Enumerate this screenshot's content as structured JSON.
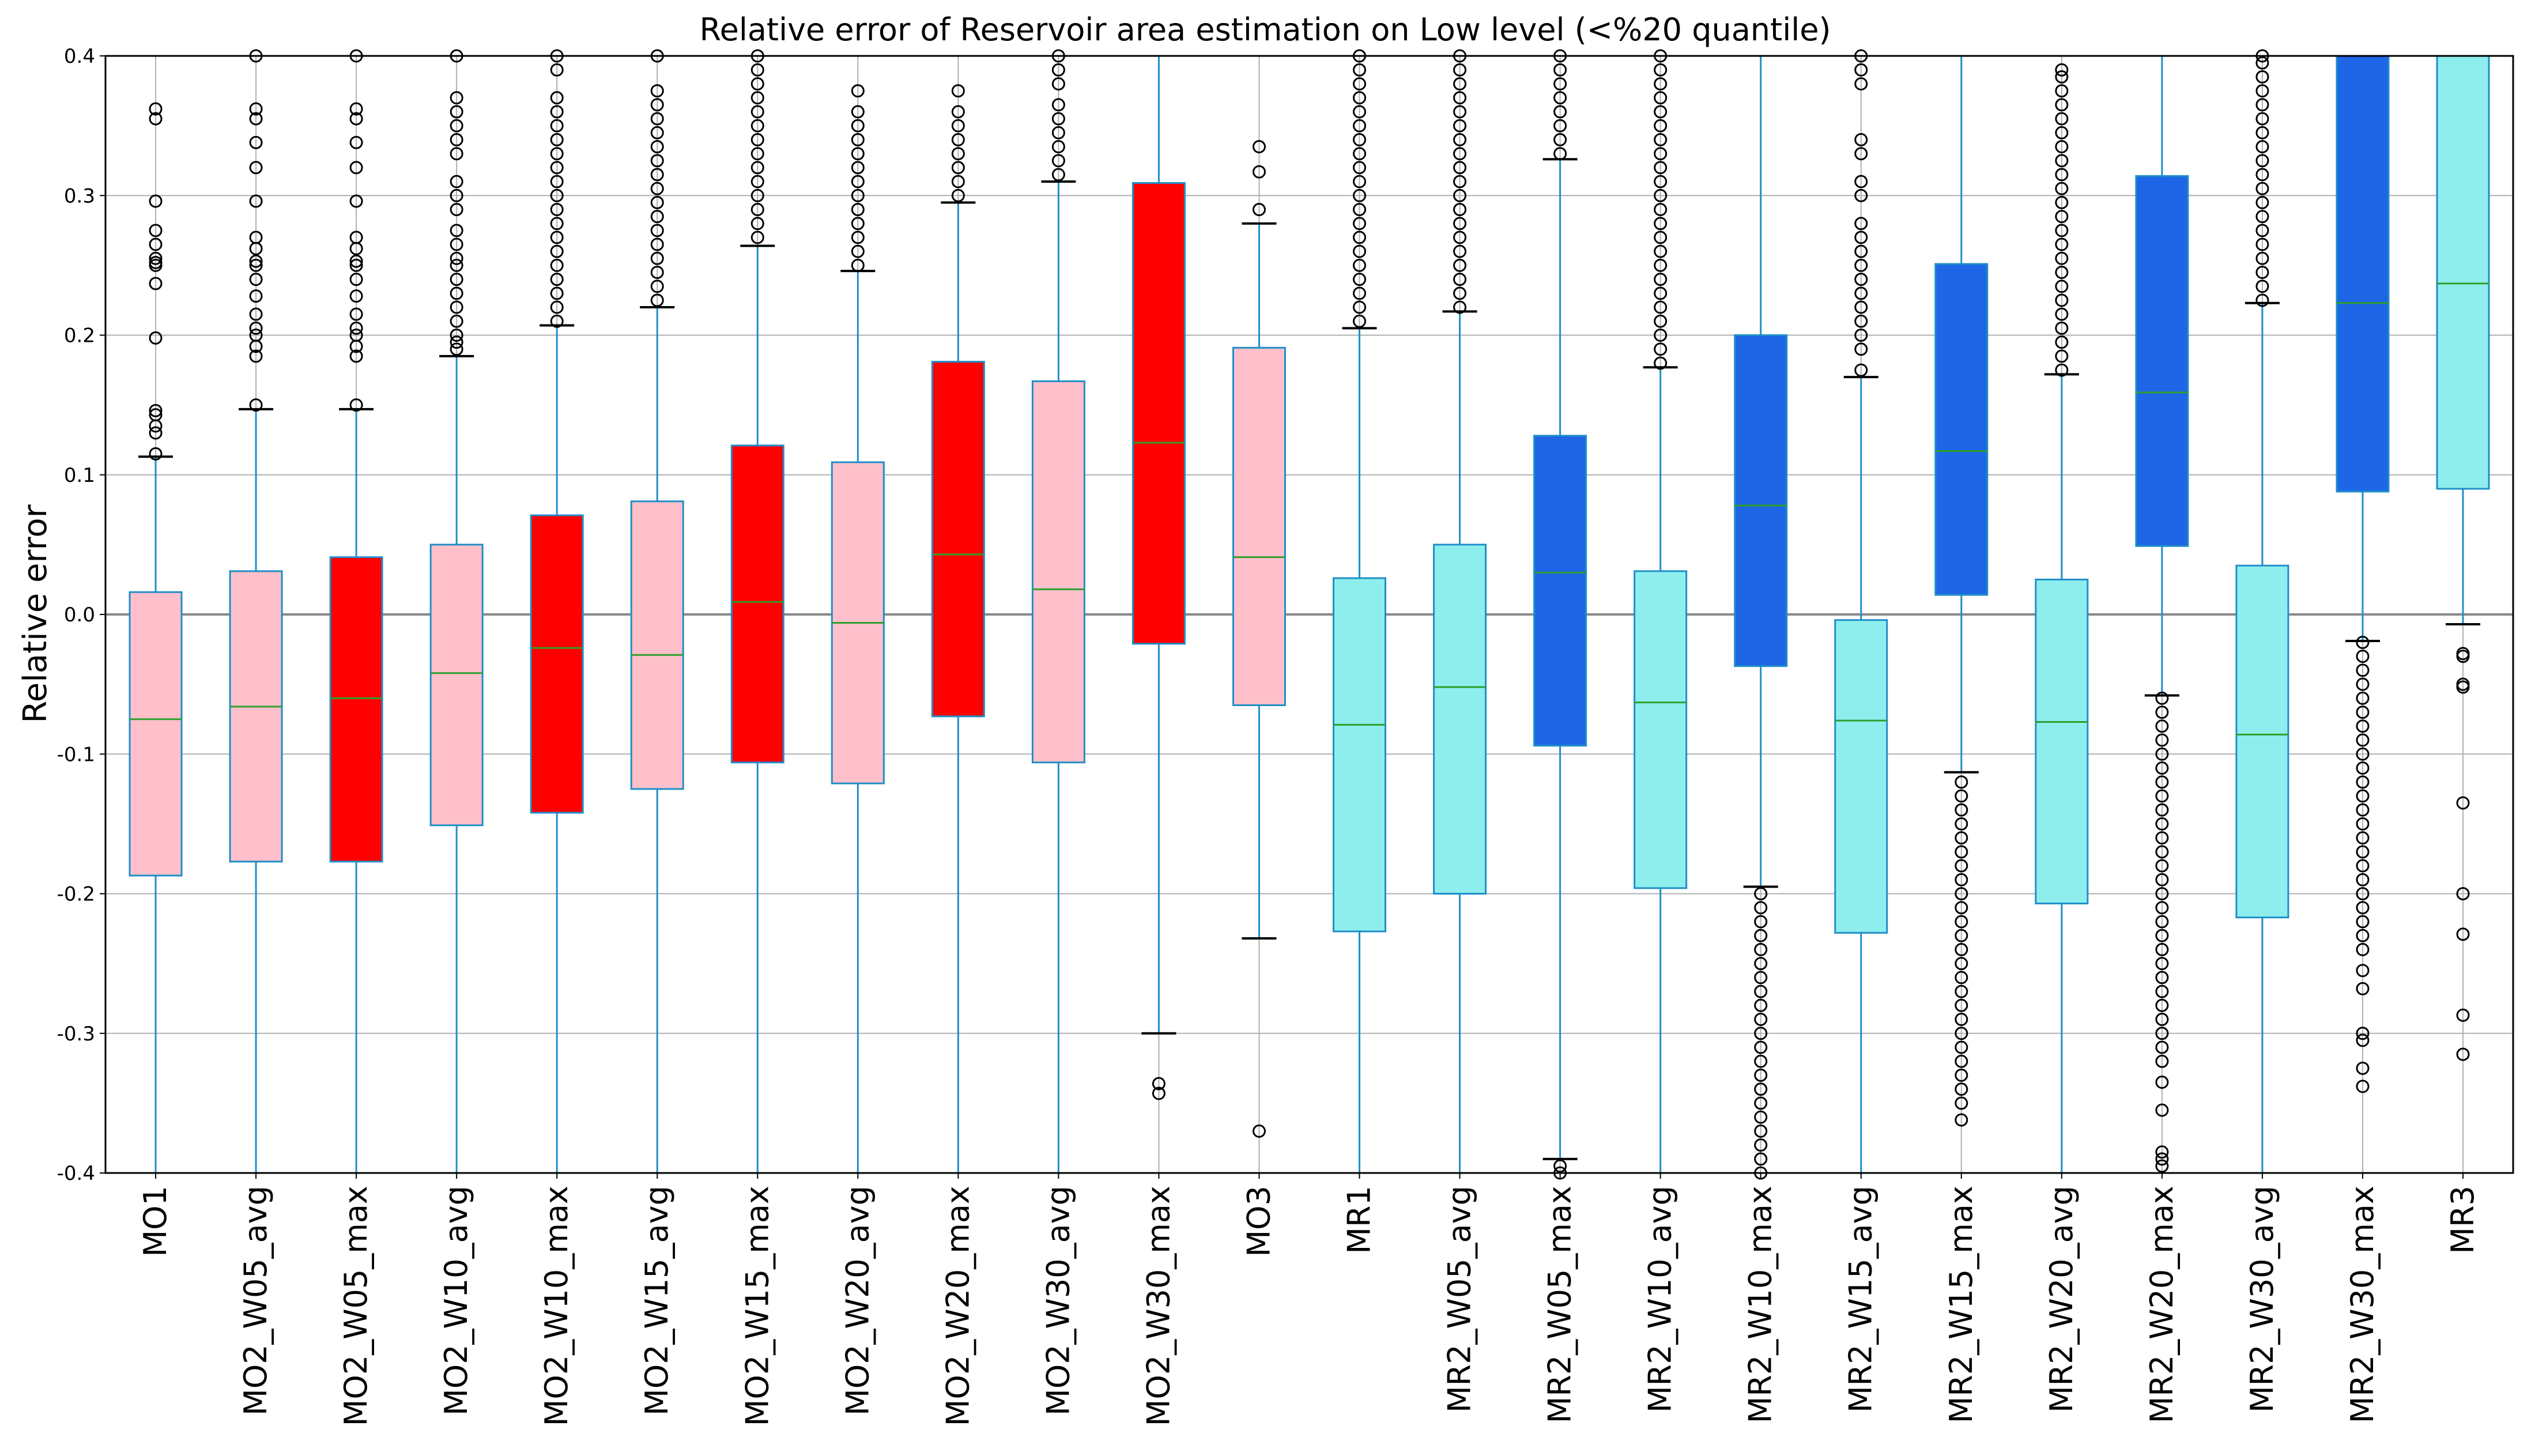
{
  "chart_data": {
    "type": "box",
    "title": "Relative error of Reservoir area estimation on Low level (<%20 quantile)",
    "xlabel": "",
    "ylabel": "Relative error",
    "ylim": [
      -0.4,
      0.4
    ],
    "yticks": [
      "-0.4",
      "-0.3",
      "-0.2",
      "-0.1",
      "0.0",
      "0.1",
      "0.2",
      "0.3",
      "0.4"
    ],
    "ytick_values": [
      -0.4,
      -0.3,
      -0.2,
      -0.1,
      0.0,
      0.1,
      0.2,
      0.3,
      0.4
    ],
    "grid": true,
    "colors": {
      "pink": "#ffc0cb",
      "red": "#ff0000",
      "cyan": "#8eeeee",
      "blue": "#1e66e6",
      "edge": "#1f8fc8",
      "median": "#2ca02c",
      "zero_line": "#888888",
      "grid": "#b0b0b0"
    },
    "boxes": [
      {
        "label": "MO1",
        "color": "pink",
        "q1": -0.187,
        "median": -0.075,
        "q3": 0.016,
        "whisker_low": -0.4,
        "whisker_high": 0.113,
        "outliers": [
          0.115,
          0.13,
          0.135,
          0.143,
          0.146,
          0.198,
          0.237,
          0.25,
          0.252,
          0.255,
          0.265,
          0.275,
          0.296,
          0.355,
          0.362
        ]
      },
      {
        "label": "MO2_W05_avg",
        "color": "pink",
        "q1": -0.177,
        "median": -0.066,
        "q3": 0.031,
        "whisker_low": -0.4,
        "whisker_high": 0.147,
        "outliers": [
          0.15,
          0.185,
          0.192,
          0.2,
          0.205,
          0.215,
          0.228,
          0.24,
          0.25,
          0.253,
          0.262,
          0.27,
          0.296,
          0.32,
          0.338,
          0.355,
          0.362,
          0.4
        ]
      },
      {
        "label": "MO2_W05_max",
        "color": "red",
        "q1": -0.177,
        "median": -0.06,
        "q3": 0.041,
        "whisker_low": -0.4,
        "whisker_high": 0.147,
        "outliers": [
          0.15,
          0.185,
          0.192,
          0.2,
          0.205,
          0.215,
          0.228,
          0.24,
          0.25,
          0.253,
          0.262,
          0.27,
          0.296,
          0.32,
          0.338,
          0.355,
          0.362,
          0.4
        ]
      },
      {
        "label": "MO2_W10_avg",
        "color": "pink",
        "q1": -0.151,
        "median": -0.042,
        "q3": 0.05,
        "whisker_low": -0.4,
        "whisker_high": 0.185,
        "outliers": [
          0.19,
          0.195,
          0.2,
          0.21,
          0.22,
          0.23,
          0.24,
          0.25,
          0.255,
          0.265,
          0.275,
          0.29,
          0.3,
          0.31,
          0.33,
          0.34,
          0.35,
          0.36,
          0.37,
          0.4
        ]
      },
      {
        "label": "MO2_W10_max",
        "color": "red",
        "q1": -0.142,
        "median": -0.024,
        "q3": 0.071,
        "whisker_low": -0.4,
        "whisker_high": 0.207,
        "outliers": [
          0.21,
          0.22,
          0.23,
          0.24,
          0.25,
          0.26,
          0.27,
          0.28,
          0.29,
          0.3,
          0.31,
          0.32,
          0.33,
          0.34,
          0.35,
          0.36,
          0.37,
          0.39,
          0.4
        ]
      },
      {
        "label": "MO2_W15_avg",
        "color": "pink",
        "q1": -0.125,
        "median": -0.029,
        "q3": 0.081,
        "whisker_low": -0.4,
        "whisker_high": 0.22,
        "outliers": [
          0.225,
          0.235,
          0.245,
          0.255,
          0.265,
          0.275,
          0.285,
          0.295,
          0.305,
          0.315,
          0.325,
          0.335,
          0.345,
          0.355,
          0.365,
          0.375,
          0.4
        ]
      },
      {
        "label": "MO2_W15_max",
        "color": "red",
        "q1": -0.106,
        "median": 0.009,
        "q3": 0.121,
        "whisker_low": -0.4,
        "whisker_high": 0.264,
        "outliers": [
          0.27,
          0.28,
          0.29,
          0.3,
          0.31,
          0.32,
          0.33,
          0.34,
          0.35,
          0.36,
          0.37,
          0.38,
          0.39,
          0.4
        ]
      },
      {
        "label": "MO2_W20_avg",
        "color": "pink",
        "q1": -0.121,
        "median": -0.006,
        "q3": 0.109,
        "whisker_low": -0.4,
        "whisker_high": 0.246,
        "outliers": [
          0.25,
          0.26,
          0.27,
          0.28,
          0.29,
          0.3,
          0.31,
          0.32,
          0.33,
          0.34,
          0.35,
          0.36,
          0.375
        ]
      },
      {
        "label": "MO2_W20_max",
        "color": "red",
        "q1": -0.073,
        "median": 0.043,
        "q3": 0.181,
        "whisker_low": -0.4,
        "whisker_high": 0.295,
        "outliers": [
          0.3,
          0.31,
          0.32,
          0.33,
          0.34,
          0.35,
          0.36,
          0.375
        ]
      },
      {
        "label": "MO2_W30_avg",
        "color": "pink",
        "q1": -0.106,
        "median": 0.018,
        "q3": 0.167,
        "whisker_low": -0.4,
        "whisker_high": 0.31,
        "outliers": [
          0.315,
          0.325,
          0.335,
          0.345,
          0.355,
          0.365,
          0.38,
          0.39,
          0.4
        ]
      },
      {
        "label": "MO2_W30_max",
        "color": "red",
        "q1": -0.021,
        "median": 0.123,
        "q3": 0.309,
        "whisker_low": -0.3,
        "whisker_high": 0.4,
        "outliers": [
          -0.336,
          -0.343
        ]
      },
      {
        "label": "MO3",
        "color": "pink",
        "q1": -0.065,
        "median": 0.041,
        "q3": 0.191,
        "whisker_low": -0.232,
        "whisker_high": 0.28,
        "outliers": [
          0.29,
          0.317,
          0.335,
          -0.37
        ]
      },
      {
        "label": "MR1",
        "color": "cyan",
        "q1": -0.227,
        "median": -0.079,
        "q3": 0.026,
        "whisker_low": -0.4,
        "whisker_high": 0.205,
        "outliers": [
          0.21,
          0.22,
          0.23,
          0.24,
          0.25,
          0.26,
          0.27,
          0.28,
          0.29,
          0.3,
          0.31,
          0.32,
          0.33,
          0.34,
          0.35,
          0.36,
          0.37,
          0.38,
          0.39,
          0.4
        ]
      },
      {
        "label": "MR2_W05_avg",
        "color": "cyan",
        "q1": -0.2,
        "median": -0.052,
        "q3": 0.05,
        "whisker_low": -0.4,
        "whisker_high": 0.217,
        "outliers": [
          0.22,
          0.23,
          0.24,
          0.25,
          0.26,
          0.27,
          0.28,
          0.29,
          0.3,
          0.31,
          0.32,
          0.33,
          0.34,
          0.35,
          0.36,
          0.37,
          0.38,
          0.39,
          0.4
        ]
      },
      {
        "label": "MR2_W05_max",
        "color": "blue",
        "q1": -0.094,
        "median": 0.03,
        "q3": 0.128,
        "whisker_low": -0.39,
        "whisker_high": 0.326,
        "outliers": [
          0.33,
          0.34,
          0.35,
          0.36,
          0.37,
          0.38,
          0.39,
          0.4,
          -0.395,
          -0.4
        ]
      },
      {
        "label": "MR2_W10_avg",
        "color": "cyan",
        "q1": -0.196,
        "median": -0.063,
        "q3": 0.031,
        "whisker_low": -0.4,
        "whisker_high": 0.177,
        "outliers": [
          0.18,
          0.19,
          0.2,
          0.21,
          0.22,
          0.23,
          0.24,
          0.25,
          0.26,
          0.27,
          0.28,
          0.29,
          0.3,
          0.31,
          0.32,
          0.33,
          0.34,
          0.35,
          0.36,
          0.37,
          0.38,
          0.39,
          0.4
        ]
      },
      {
        "label": "MR2_W10_max",
        "color": "blue",
        "q1": -0.037,
        "median": 0.078,
        "q3": 0.2,
        "whisker_low": -0.195,
        "whisker_high": 0.4,
        "outliers": [
          -0.2,
          -0.21,
          -0.22,
          -0.23,
          -0.24,
          -0.25,
          -0.26,
          -0.27,
          -0.28,
          -0.29,
          -0.3,
          -0.31,
          -0.32,
          -0.33,
          -0.34,
          -0.35,
          -0.36,
          -0.37,
          -0.38,
          -0.39,
          -0.4
        ]
      },
      {
        "label": "MR2_W15_avg",
        "color": "cyan",
        "q1": -0.228,
        "median": -0.076,
        "q3": -0.004,
        "whisker_low": -0.4,
        "whisker_high": 0.17,
        "outliers": [
          0.175,
          0.19,
          0.2,
          0.21,
          0.22,
          0.23,
          0.24,
          0.25,
          0.26,
          0.27,
          0.28,
          0.3,
          0.31,
          0.33,
          0.34,
          0.38,
          0.39,
          0.4
        ]
      },
      {
        "label": "MR2_W15_max",
        "color": "blue",
        "q1": 0.014,
        "median": 0.117,
        "q3": 0.251,
        "whisker_low": -0.113,
        "whisker_high": 0.4,
        "outliers": [
          -0.12,
          -0.13,
          -0.14,
          -0.15,
          -0.16,
          -0.17,
          -0.18,
          -0.19,
          -0.2,
          -0.21,
          -0.22,
          -0.23,
          -0.24,
          -0.25,
          -0.26,
          -0.27,
          -0.28,
          -0.29,
          -0.3,
          -0.31,
          -0.32,
          -0.33,
          -0.34,
          -0.35,
          -0.362
        ]
      },
      {
        "label": "MR2_W20_avg",
        "color": "cyan",
        "q1": -0.207,
        "median": -0.077,
        "q3": 0.025,
        "whisker_low": -0.4,
        "whisker_high": 0.172,
        "outliers": [
          0.175,
          0.185,
          0.195,
          0.205,
          0.215,
          0.225,
          0.235,
          0.245,
          0.255,
          0.265,
          0.275,
          0.285,
          0.295,
          0.305,
          0.315,
          0.325,
          0.335,
          0.345,
          0.355,
          0.365,
          0.375,
          0.385,
          0.39
        ]
      },
      {
        "label": "MR2_W20_max",
        "color": "blue",
        "q1": 0.049,
        "median": 0.159,
        "q3": 0.314,
        "whisker_low": -0.058,
        "whisker_high": 0.4,
        "outliers": [
          -0.06,
          -0.07,
          -0.08,
          -0.09,
          -0.1,
          -0.11,
          -0.12,
          -0.13,
          -0.14,
          -0.15,
          -0.16,
          -0.17,
          -0.18,
          -0.19,
          -0.2,
          -0.21,
          -0.22,
          -0.23,
          -0.24,
          -0.25,
          -0.26,
          -0.27,
          -0.28,
          -0.29,
          -0.3,
          -0.31,
          -0.32,
          -0.335,
          -0.355,
          -0.385,
          -0.39,
          -0.395
        ]
      },
      {
        "label": "MR2_W30_avg",
        "color": "cyan",
        "q1": -0.217,
        "median": -0.086,
        "q3": 0.035,
        "whisker_low": -0.4,
        "whisker_high": 0.223,
        "outliers": [
          0.225,
          0.235,
          0.245,
          0.255,
          0.265,
          0.275,
          0.285,
          0.295,
          0.305,
          0.315,
          0.325,
          0.335,
          0.345,
          0.355,
          0.365,
          0.375,
          0.385,
          0.395,
          0.4
        ]
      },
      {
        "label": "MR2_W30_max",
        "color": "blue",
        "q1": 0.088,
        "median": 0.223,
        "q3": 0.4,
        "whisker_low": -0.019,
        "whisker_high": 0.4,
        "outliers": [
          -0.02,
          -0.03,
          -0.04,
          -0.05,
          -0.06,
          -0.07,
          -0.08,
          -0.09,
          -0.1,
          -0.11,
          -0.12,
          -0.13,
          -0.14,
          -0.15,
          -0.16,
          -0.17,
          -0.18,
          -0.19,
          -0.2,
          -0.21,
          -0.22,
          -0.23,
          -0.24,
          -0.255,
          -0.268,
          -0.3,
          -0.305,
          -0.325,
          -0.338
        ]
      },
      {
        "label": "MR3",
        "color": "cyan",
        "q1": 0.09,
        "median": 0.237,
        "q3": 0.4,
        "whisker_low": -0.007,
        "whisker_high": 0.4,
        "outliers": [
          -0.028,
          -0.03,
          -0.05,
          -0.052,
          -0.135,
          -0.2,
          -0.229,
          -0.287,
          -0.315
        ]
      }
    ]
  }
}
